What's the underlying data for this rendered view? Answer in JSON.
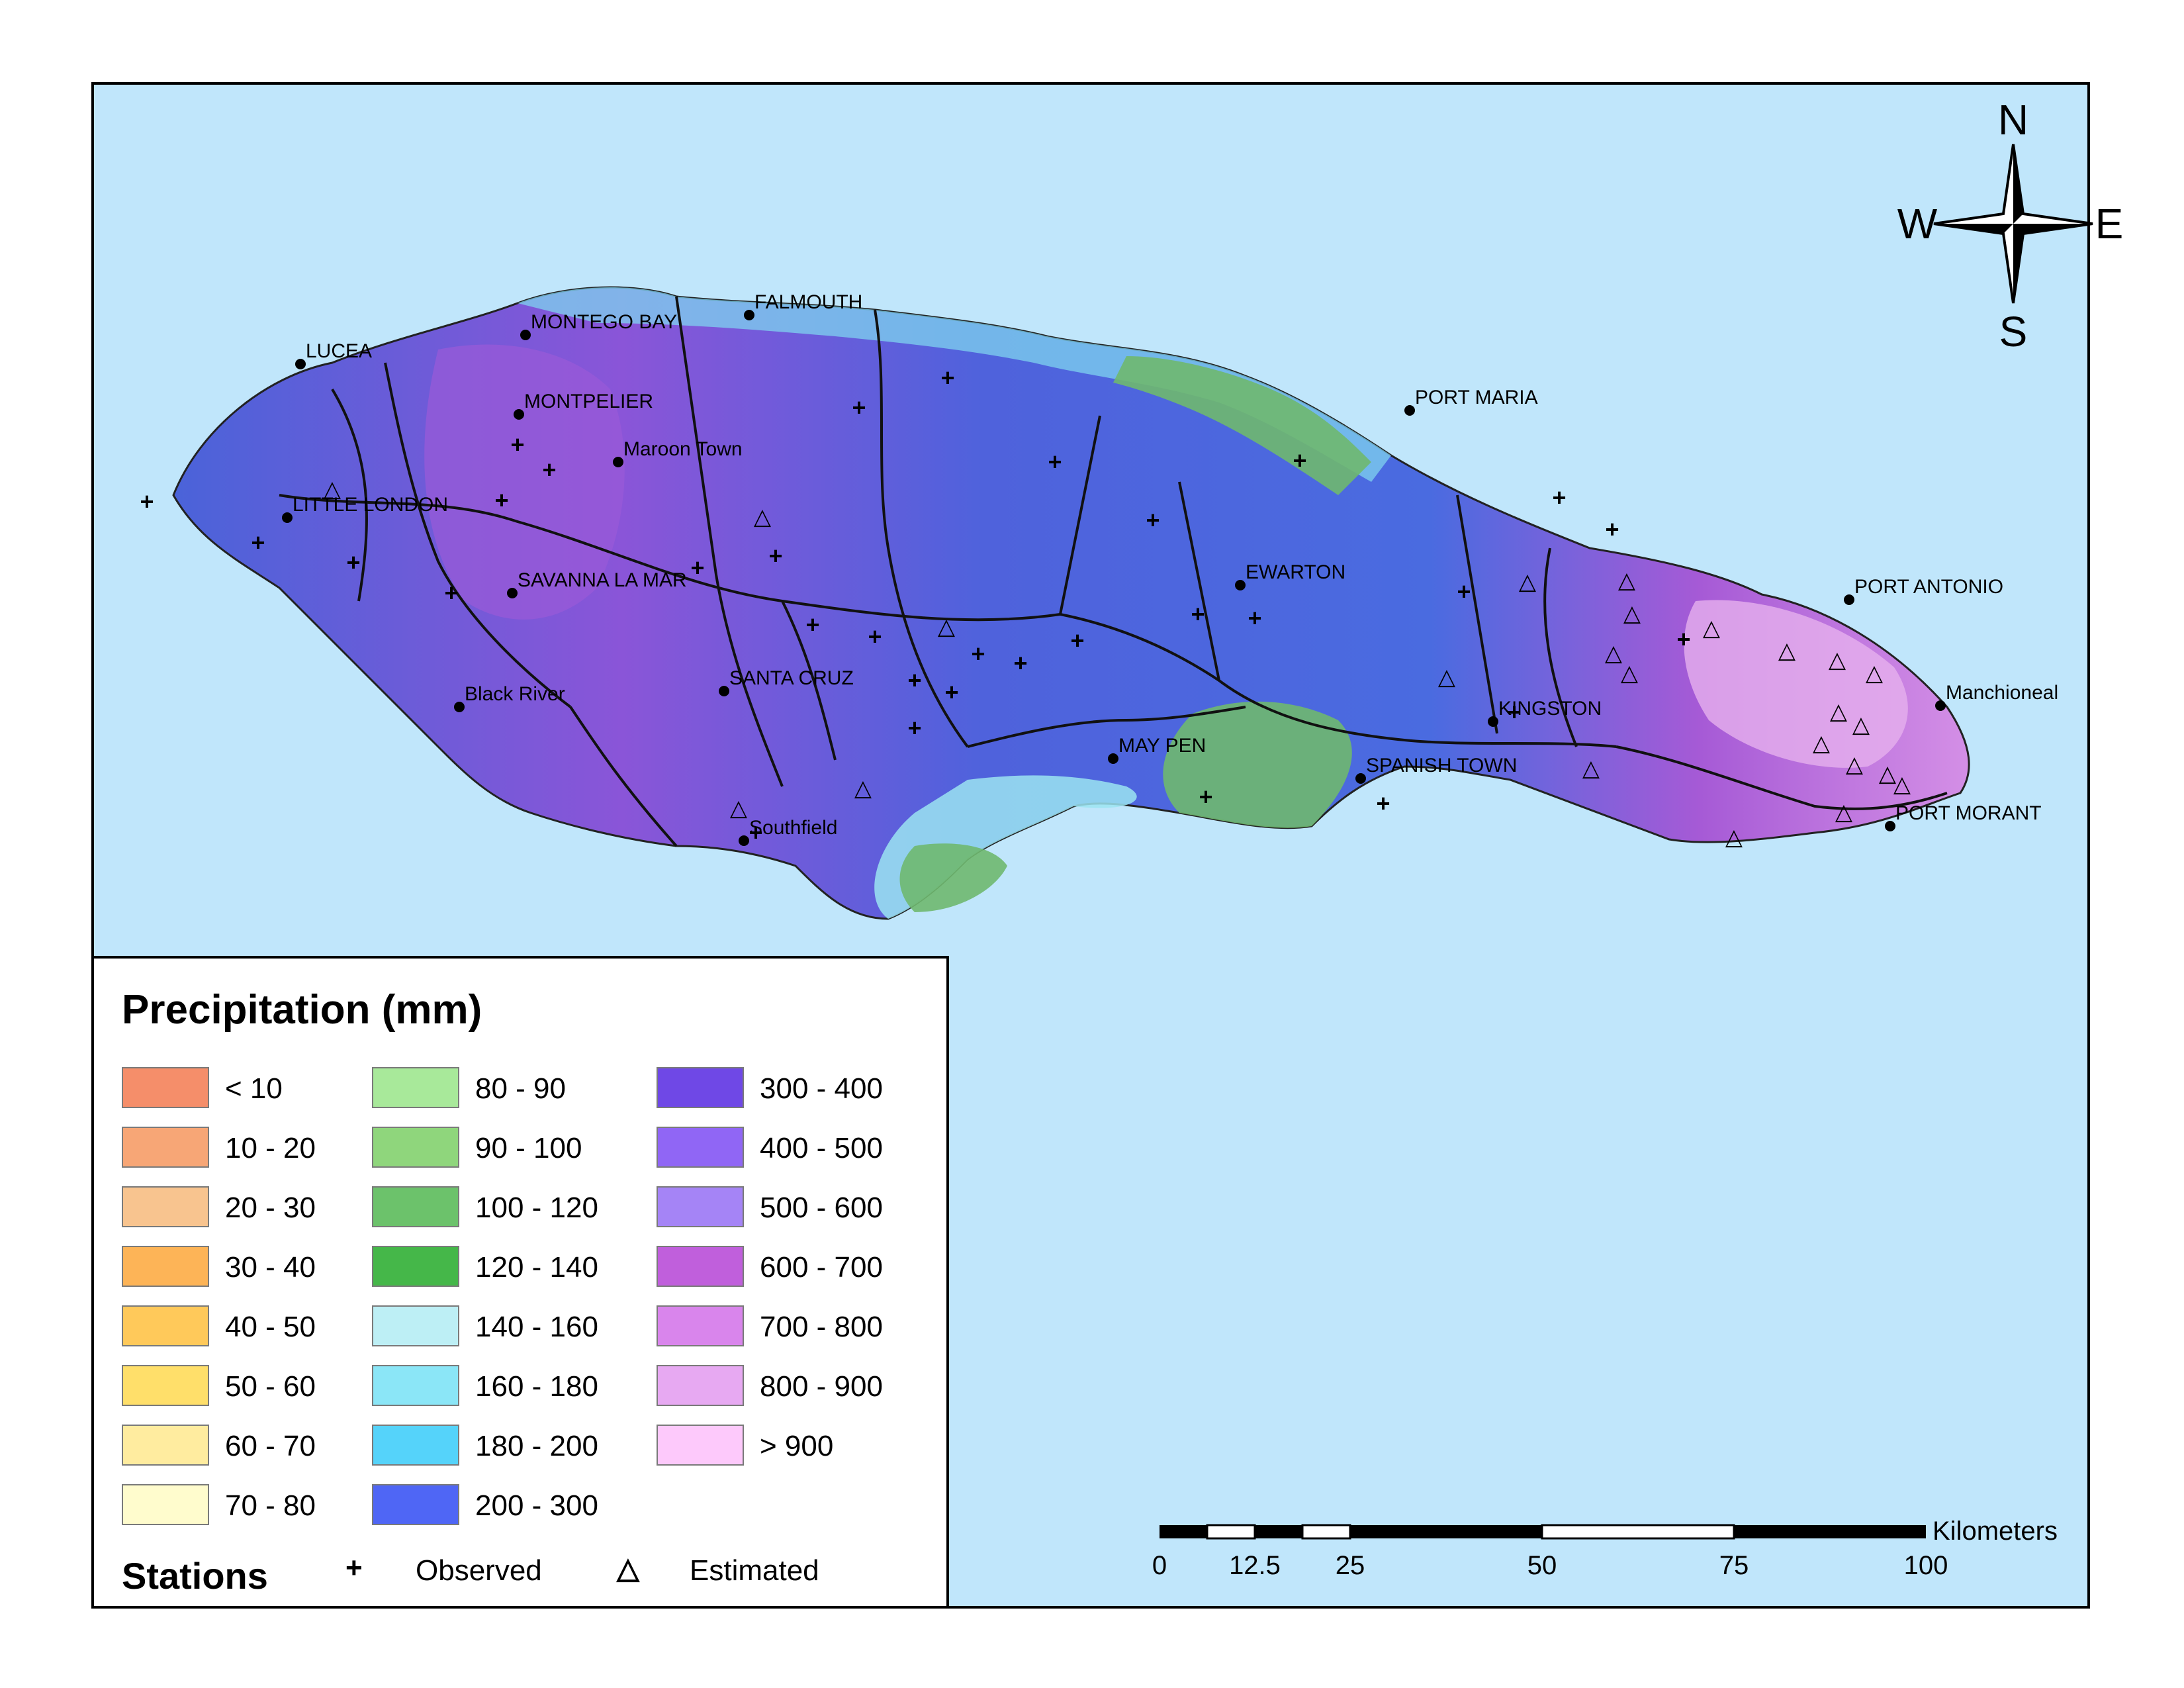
{
  "map": {
    "cities": [
      {
        "name": "LUCEA"
      },
      {
        "name": "MONTEGO BAY"
      },
      {
        "name": "FALMOUTH"
      },
      {
        "name": "MONTPELIER"
      },
      {
        "name": "Maroon Town"
      },
      {
        "name": "PORT MARIA"
      },
      {
        "name": "LITTLE LONDON"
      },
      {
        "name": "SAVANNA LA MAR"
      },
      {
        "name": "EWARTON"
      },
      {
        "name": "PORT ANTONIO"
      },
      {
        "name": "Black River"
      },
      {
        "name": "SANTA CRUZ"
      },
      {
        "name": "KINGSTON"
      },
      {
        "name": "Manchioneal"
      },
      {
        "name": "SPANISH TOWN"
      },
      {
        "name": "MAY PEN"
      },
      {
        "name": "Southfield"
      },
      {
        "name": "PORT MORANT"
      }
    ],
    "colors": {
      "sea": "#c0e6fb",
      "land_low": "#6fb86f",
      "land_mid": "#4a63d9",
      "land_high": "#9f58d6",
      "land_peak": "#e3a9ea"
    }
  },
  "north_arrow": {
    "n": "N",
    "s": "S",
    "e": "E",
    "w": "W"
  },
  "scalebar": {
    "unit": "Kilometers",
    "ticks": [
      "0",
      "12.5",
      "25",
      "50",
      "75",
      "100"
    ]
  },
  "legend": {
    "title": "Precipitation (mm)",
    "classes": [
      {
        "label": "< 10",
        "color": "#f58e6a"
      },
      {
        "label": "10 - 20",
        "color": "#f7a676"
      },
      {
        "label": "20 - 30",
        "color": "#f8c48f"
      },
      {
        "label": "30 - 40",
        "color": "#fdb457"
      },
      {
        "label": "40 - 50",
        "color": "#ffc95a"
      },
      {
        "label": "50 - 60",
        "color": "#ffdf6a"
      },
      {
        "label": "60 - 70",
        "color": "#ffec9f"
      },
      {
        "label": "70 - 80",
        "color": "#fffccd"
      },
      {
        "label": "80 - 90",
        "color": "#a8e99a"
      },
      {
        "label": "90 - 100",
        "color": "#8fd67c"
      },
      {
        "label": "100 - 120",
        "color": "#6cc26b"
      },
      {
        "label": "120 - 140",
        "color": "#45b749"
      },
      {
        "label": "140 - 160",
        "color": "#bdeff5"
      },
      {
        "label": "160 - 180",
        "color": "#8be6f7"
      },
      {
        "label": "180 - 200",
        "color": "#55d3fa"
      },
      {
        "label": "200 - 300",
        "color": "#4f66f5"
      },
      {
        "label": "300 - 400",
        "color": "#6f48e6"
      },
      {
        "label": "400 - 500",
        "color": "#9066f5"
      },
      {
        "label": "500 - 600",
        "color": "#a584f6"
      },
      {
        "label": "600 - 700",
        "color": "#c05fdc"
      },
      {
        "label": "700 - 800",
        "color": "#d985ec"
      },
      {
        "label": "800 - 900",
        "color": "#e7a9f2"
      },
      {
        "label": "> 900",
        "color": "#fdc9fb"
      }
    ],
    "stations_title": "Stations",
    "observed_label": "Observed",
    "estimated_label": "Estimated",
    "observed_symbol": "+",
    "estimated_symbol": "△"
  }
}
